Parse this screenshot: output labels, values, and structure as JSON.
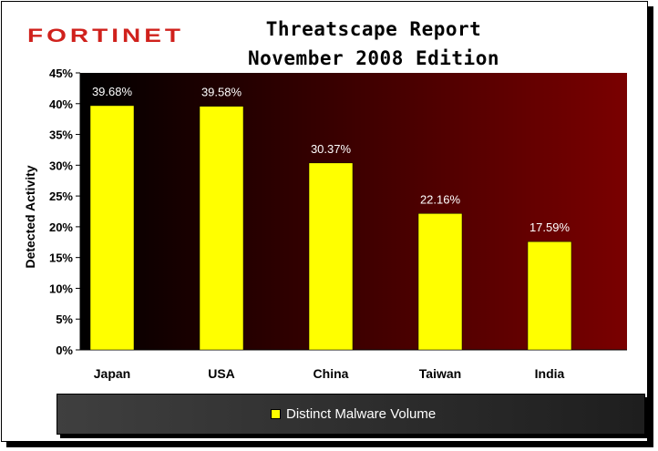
{
  "logo": {
    "text": "FORTINET",
    "color": "#d0211c"
  },
  "header": {
    "title_line1": "Threatscape Report",
    "title_line2": "November 2008 Edition"
  },
  "legend": {
    "label": "Distinct Malware Volume"
  },
  "chart_data": {
    "type": "bar",
    "categories": [
      "Japan",
      "USA",
      "China",
      "Taiwan",
      "India"
    ],
    "series": [
      {
        "name": "Distinct Malware Volume",
        "values": [
          39.68,
          39.58,
          30.37,
          22.16,
          17.59
        ],
        "value_labels": [
          "39.68%",
          "39.58%",
          "30.37%",
          "22.16%",
          "17.59%"
        ],
        "color": "#ffff00"
      }
    ],
    "ylabel": "Detected Activity",
    "xlabel": "",
    "ylim": [
      0,
      45
    ],
    "yticks": [
      0,
      5,
      10,
      15,
      20,
      25,
      30,
      35,
      40,
      45
    ],
    "ytick_labels": [
      "0%",
      "5%",
      "10%",
      "15%",
      "20%",
      "25%",
      "30%",
      "35%",
      "40%",
      "45%"
    ],
    "legend_position": "bottom",
    "grid": false,
    "plot_background": {
      "left": "#000000",
      "right": "#7a0000"
    }
  }
}
